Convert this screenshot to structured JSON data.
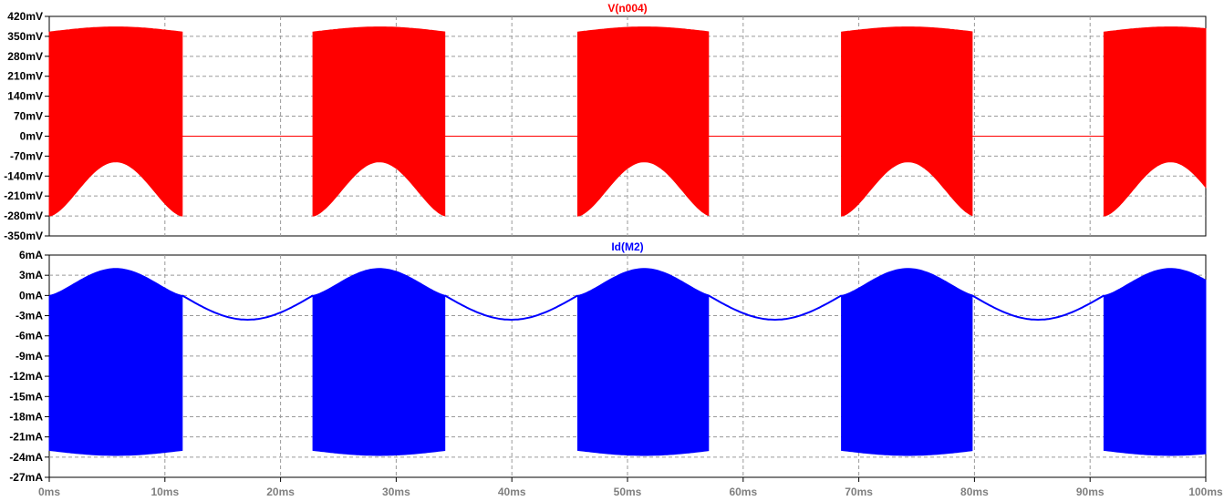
{
  "chart_data": [
    {
      "type": "line",
      "title": "V(n004)",
      "title_color": "#ff0000",
      "series": [
        {
          "name": "V(n004)",
          "color": "#ff0000"
        }
      ],
      "x_unit": "ms",
      "ylim": [
        -350,
        420
      ],
      "y_unit": "mV",
      "y_tick_labels": [
        "420mV",
        "350mV",
        "280mV",
        "210mV",
        "140mV",
        "70mV",
        "0mV",
        "-70mV",
        "-140mV",
        "-210mV",
        "-280mV",
        "-350mV"
      ],
      "grid": true,
      "on_intervals_ms": [
        [
          0,
          11.5
        ],
        [
          22.8,
          34.2
        ],
        [
          45.7,
          57
        ],
        [
          68.5,
          79.8
        ],
        [
          91.2,
          100
        ]
      ],
      "envelope_max_mV": [
        365,
        385
      ],
      "envelope_min_mV": [
        -280,
        -90
      ],
      "off_value_mV": 0
    },
    {
      "type": "line",
      "title": "Id(M2)",
      "title_color": "#0000ff",
      "series": [
        {
          "name": "Id(M2)",
          "color": "#0000ff"
        }
      ],
      "x_unit": "ms",
      "ylim": [
        -27,
        6
      ],
      "y_unit": "mA",
      "y_tick_labels": [
        "6mA",
        "3mA",
        "0mA",
        "-3mA",
        "-6mA",
        "-9mA",
        "-12mA",
        "-15mA",
        "-18mA",
        "-21mA",
        "-24mA",
        "-27mA"
      ],
      "grid": true,
      "on_intervals_ms": [
        [
          0,
          11.5
        ],
        [
          22.8,
          34.2
        ],
        [
          45.7,
          57
        ],
        [
          68.5,
          79.8
        ],
        [
          91.2,
          100
        ]
      ],
      "envelope_max_mA": [
        0,
        4
      ],
      "envelope_min_mA": [
        -24.5,
        -23
      ],
      "off_wave_amplitude_mA": 3.6,
      "off_wave_period_ms": 22.8
    }
  ],
  "x_axis": {
    "xlim": [
      0,
      100
    ],
    "unit": "ms",
    "tick_labels": [
      "0ms",
      "10ms",
      "20ms",
      "30ms",
      "40ms",
      "50ms",
      "60ms",
      "70ms",
      "80ms",
      "90ms",
      "100ms"
    ]
  }
}
